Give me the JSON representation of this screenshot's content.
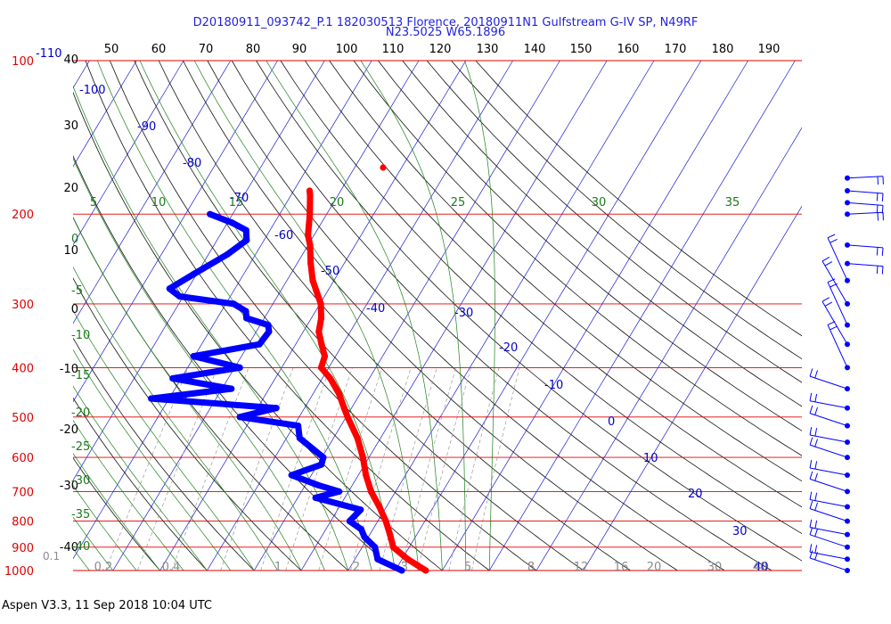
{
  "title": {
    "line1": "D20180911_093742_P.1 182030513 Florence, 20180911N1 Gulfstream G-IV SP, N49RF",
    "line2": "N23.5025 W65.1896"
  },
  "footer": "Aspen V3.3, 11 Sep 2018  10:04 UTC",
  "colors": {
    "isobar": "#e00000",
    "isotherm": "#0000cc",
    "dry_adiabat": "#000000",
    "moist_adiabat": "#007a00",
    "mixing_ratio": "#7f7f7f",
    "temperature": "#ff0000",
    "dewpoint": "#0000ff",
    "wind": "#0000ff"
  },
  "chart_data": {
    "type": "skew-t",
    "pressure_axis_label": "",
    "pressure_ticks": [
      "100",
      "200",
      "300",
      "400",
      "500",
      "600",
      "700",
      "800",
      "900",
      "1000"
    ],
    "temperature_c_ticks_left": [
      "40",
      "30",
      "20",
      "10",
      "0",
      "-10",
      "-20",
      "-30",
      "-40"
    ],
    "temperature_f_ticks_top": [
      "50",
      "60",
      "70",
      "80",
      "90",
      "100",
      "110",
      "120",
      "130",
      "140",
      "150",
      "160",
      "170",
      "180",
      "190"
    ],
    "corner_labels": {
      "left_isotherm": "-110",
      "left_mixing": "0.1"
    },
    "isotherm_labels": [
      "-100",
      "-90",
      "-80",
      "-70",
      "-60",
      "-50",
      "-40",
      "-30",
      "-20",
      "-10",
      "0",
      "10",
      "20",
      "30",
      "40"
    ],
    "moist_adiabat_labels_top": [
      "5",
      "10",
      "15",
      "20",
      "25",
      "30",
      "35"
    ],
    "moist_adiabat_labels_left": [
      "0",
      "-5",
      "-10",
      "-15",
      "-20",
      "-25",
      "-30",
      "-35",
      "-40"
    ],
    "mixing_ratio_labels": [
      "0.2",
      "0.4",
      "1",
      "2",
      "3",
      "5",
      "8",
      "12",
      "16",
      "20",
      "30",
      "40"
    ],
    "temperature_profile": [
      {
        "p": 180,
        "t": -46.6
      },
      {
        "p": 184,
        "t": -45.9
      },
      {
        "p": 195,
        "t": -44.3
      },
      {
        "p": 200,
        "t": -43.6
      },
      {
        "p": 210,
        "t": -42.4
      },
      {
        "p": 220,
        "t": -41.3
      },
      {
        "p": 230,
        "t": -39.6
      },
      {
        "p": 250,
        "t": -37.1
      },
      {
        "p": 270,
        "t": -34.5
      },
      {
        "p": 300,
        "t": -29.8
      },
      {
        "p": 320,
        "t": -27.9
      },
      {
        "p": 340,
        "t": -26.7
      },
      {
        "p": 360,
        "t": -24.5
      },
      {
        "p": 380,
        "t": -22.3
      },
      {
        "p": 400,
        "t": -21.6
      },
      {
        "p": 420,
        "t": -18.3
      },
      {
        "p": 450,
        "t": -14.5
      },
      {
        "p": 480,
        "t": -11.6
      },
      {
        "p": 500,
        "t": -9.7
      },
      {
        "p": 550,
        "t": -4.9
      },
      {
        "p": 600,
        "t": -1.3
      },
      {
        "p": 650,
        "t": 1.6
      },
      {
        "p": 700,
        "t": 4.8
      },
      {
        "p": 750,
        "t": 8.5
      },
      {
        "p": 800,
        "t": 11.7
      },
      {
        "p": 850,
        "t": 14.3
      },
      {
        "p": 900,
        "t": 16.6
      },
      {
        "p": 950,
        "t": 21.2
      },
      {
        "p": 1000,
        "t": 26.5
      }
    ],
    "dewpoint_profile": [
      {
        "p": 200,
        "td": -64.8
      },
      {
        "p": 208,
        "td": -59.0
      },
      {
        "p": 215,
        "td": -55.1
      },
      {
        "p": 225,
        "td": -53.7
      },
      {
        "p": 240,
        "td": -56.0
      },
      {
        "p": 262,
        "td": -60.6
      },
      {
        "p": 280,
        "td": -63.9
      },
      {
        "p": 290,
        "td": -60.8
      },
      {
        "p": 300,
        "td": -48.3
      },
      {
        "p": 310,
        "td": -44.8
      },
      {
        "p": 320,
        "td": -43.8
      },
      {
        "p": 330,
        "td": -38.3
      },
      {
        "p": 340,
        "td": -37.3
      },
      {
        "p": 360,
        "td": -37.7
      },
      {
        "p": 380,
        "td": -50.2
      },
      {
        "p": 400,
        "td": -38.9
      },
      {
        "p": 420,
        "td": -51.8
      },
      {
        "p": 440,
        "td": -38.0
      },
      {
        "p": 460,
        "td": -53.8
      },
      {
        "p": 480,
        "td": -26.0
      },
      {
        "p": 500,
        "td": -32.6
      },
      {
        "p": 520,
        "td": -19.1
      },
      {
        "p": 550,
        "td": -17.2
      },
      {
        "p": 600,
        "td": -9.7
      },
      {
        "p": 620,
        "td": -9.2
      },
      {
        "p": 650,
        "td": -14.2
      },
      {
        "p": 680,
        "td": -7.3
      },
      {
        "p": 700,
        "td": -2.0
      },
      {
        "p": 720,
        "td": -6.2
      },
      {
        "p": 760,
        "td": 4.9
      },
      {
        "p": 800,
        "td": 4.0
      },
      {
        "p": 830,
        "td": 7.5
      },
      {
        "p": 860,
        "td": 9.2
      },
      {
        "p": 900,
        "td": 12.7
      },
      {
        "p": 950,
        "td": 14.8
      },
      {
        "p": 1000,
        "td": 21.4
      }
    ],
    "wind_barbs": [
      {
        "p": 170
      },
      {
        "p": 180
      },
      {
        "p": 190
      },
      {
        "p": 200
      },
      {
        "p": 230
      },
      {
        "p": 250
      },
      {
        "p": 270
      },
      {
        "p": 300
      },
      {
        "p": 330
      },
      {
        "p": 360
      },
      {
        "p": 400
      },
      {
        "p": 440
      },
      {
        "p": 480
      },
      {
        "p": 520
      },
      {
        "p": 560
      },
      {
        "p": 600
      },
      {
        "p": 650
      },
      {
        "p": 700
      },
      {
        "p": 750
      },
      {
        "p": 800
      },
      {
        "p": 850
      },
      {
        "p": 900
      },
      {
        "p": 950
      },
      {
        "p": 1000
      }
    ]
  }
}
